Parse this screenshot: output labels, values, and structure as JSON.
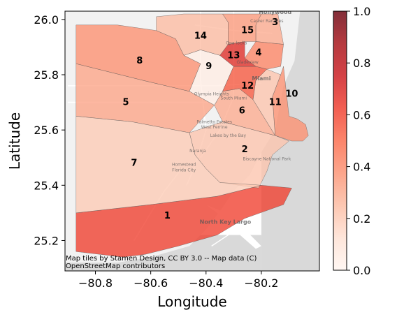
{
  "chart_data": {
    "type": "choropleth",
    "xlabel": "Longitude",
    "ylabel": "Latitude",
    "xlim": [
      -80.91,
      -79.99
    ],
    "ylim": [
      25.09,
      26.03
    ],
    "xticks": [
      {
        "value": -80.8,
        "label": "−80.8"
      },
      {
        "value": -80.6,
        "label": "−80.6"
      },
      {
        "value": -80.4,
        "label": "−80.4"
      },
      {
        "value": -80.2,
        "label": "−80.2"
      }
    ],
    "yticks": [
      {
        "value": 26.0,
        "label": "26.0"
      },
      {
        "value": 25.8,
        "label": "25.8"
      },
      {
        "value": 25.6,
        "label": "25.6"
      },
      {
        "value": 25.4,
        "label": "25.4"
      },
      {
        "value": 25.2,
        "label": "25.2"
      }
    ],
    "colormap": {
      "name": "Reds",
      "range": [
        0.0,
        1.0
      ],
      "ticks": [
        {
          "value": 0.0,
          "label": "0.0"
        },
        {
          "value": 0.2,
          "label": "0.2"
        },
        {
          "value": 0.4,
          "label": "0.4"
        },
        {
          "value": 0.6,
          "label": "0.6"
        },
        {
          "value": 0.8,
          "label": "0.8"
        },
        {
          "value": 1.0,
          "label": "1.0"
        }
      ],
      "stops": [
        [
          0.0,
          "#fff5f0"
        ],
        [
          0.125,
          "#fee0d2"
        ],
        [
          0.25,
          "#fcbba1"
        ],
        [
          0.375,
          "#fc9272"
        ],
        [
          0.5,
          "#fb6a4a"
        ],
        [
          0.625,
          "#ef3b2c"
        ],
        [
          0.75,
          "#cb181d"
        ],
        [
          0.875,
          "#a50f15"
        ],
        [
          1.0,
          "#67000d"
        ]
      ]
    },
    "regions": [
      {
        "id": "1",
        "value": 0.62,
        "label_at": [
          -80.54,
          25.29
        ],
        "polygon": [
          [
            -80.87,
            25.3
          ],
          [
            -80.6,
            25.33
          ],
          [
            -80.36,
            25.36
          ],
          [
            -80.2,
            25.4
          ],
          [
            -80.09,
            25.39
          ],
          [
            -80.12,
            25.33
          ],
          [
            -80.26,
            25.28
          ],
          [
            -80.36,
            25.22
          ],
          [
            -80.5,
            25.18
          ],
          [
            -80.62,
            25.15
          ],
          [
            -80.7,
            25.14
          ],
          [
            -80.87,
            25.16
          ]
        ]
      },
      {
        "id": "2",
        "value": 0.22,
        "label_at": [
          -80.26,
          25.53
        ],
        "polygon": [
          [
            -80.46,
            25.59
          ],
          [
            -80.34,
            25.63
          ],
          [
            -80.15,
            25.58
          ],
          [
            -80.1,
            25.56
          ],
          [
            -80.16,
            25.51
          ],
          [
            -80.18,
            25.45
          ],
          [
            -80.2,
            25.41
          ],
          [
            -80.21,
            25.39
          ],
          [
            -80.35,
            25.41
          ],
          [
            -80.4,
            25.46
          ],
          [
            -80.44,
            25.51
          ]
        ]
      },
      {
        "id": "3",
        "value": 0.3,
        "label_at": [
          -80.15,
          25.99
        ],
        "polygon": [
          [
            -80.2,
            26.02
          ],
          [
            -80.14,
            26.02
          ],
          [
            -80.12,
            25.91
          ],
          [
            -80.22,
            25.92
          ],
          [
            -80.22,
            25.98
          ]
        ]
      },
      {
        "id": "4",
        "value": 0.42,
        "label_at": [
          -80.21,
          25.88
        ],
        "polygon": [
          [
            -80.22,
            25.92
          ],
          [
            -80.12,
            25.91
          ],
          [
            -80.13,
            25.83
          ],
          [
            -80.18,
            25.82
          ],
          [
            -80.22,
            25.83
          ],
          [
            -80.26,
            25.86
          ]
        ]
      },
      {
        "id": "5",
        "value": 0.32,
        "label_at": [
          -80.69,
          25.7
        ],
        "polygon": [
          [
            -80.87,
            25.84
          ],
          [
            -80.63,
            25.78
          ],
          [
            -80.46,
            25.74
          ],
          [
            -80.37,
            25.69
          ],
          [
            -80.46,
            25.59
          ],
          [
            -80.67,
            25.63
          ],
          [
            -80.87,
            25.65
          ]
        ]
      },
      {
        "id": "6",
        "value": 0.3,
        "label_at": [
          -80.27,
          25.67
        ],
        "polygon": [
          [
            -80.37,
            25.69
          ],
          [
            -80.34,
            25.74
          ],
          [
            -80.28,
            25.75
          ],
          [
            -80.23,
            25.71
          ],
          [
            -80.15,
            25.58
          ],
          [
            -80.34,
            25.63
          ]
        ]
      },
      {
        "id": "7",
        "value": 0.2,
        "label_at": [
          -80.66,
          25.48
        ],
        "polygon": [
          [
            -80.87,
            25.65
          ],
          [
            -80.67,
            25.63
          ],
          [
            -80.46,
            25.59
          ],
          [
            -80.44,
            25.51
          ],
          [
            -80.4,
            25.46
          ],
          [
            -80.35,
            25.41
          ],
          [
            -80.2,
            25.4
          ],
          [
            -80.36,
            25.36
          ],
          [
            -80.6,
            25.33
          ],
          [
            -80.87,
            25.3
          ]
        ]
      },
      {
        "id": "8",
        "value": 0.38,
        "label_at": [
          -80.64,
          25.85
        ],
        "polygon": [
          [
            -80.87,
            25.98
          ],
          [
            -80.72,
            25.98
          ],
          [
            -80.58,
            25.96
          ],
          [
            -80.51,
            25.93
          ],
          [
            -80.48,
            25.87
          ],
          [
            -80.42,
            25.84
          ],
          [
            -80.46,
            25.74
          ],
          [
            -80.63,
            25.78
          ],
          [
            -80.87,
            25.84
          ]
        ]
      },
      {
        "id": "9",
        "value": 0.05,
        "label_at": [
          -80.39,
          25.83
        ],
        "polygon": [
          [
            -80.48,
            25.87
          ],
          [
            -80.42,
            25.89
          ],
          [
            -80.35,
            25.87
          ],
          [
            -80.3,
            25.83
          ],
          [
            -80.34,
            25.74
          ],
          [
            -80.37,
            25.69
          ],
          [
            -80.46,
            25.74
          ],
          [
            -80.42,
            25.84
          ]
        ]
      },
      {
        "id": "10",
        "value": 0.38,
        "label_at": [
          -80.09,
          25.73
        ],
        "polygon": [
          [
            -80.12,
            25.83
          ],
          [
            -80.11,
            25.74
          ],
          [
            -80.1,
            25.65
          ],
          [
            -80.07,
            25.64
          ],
          [
            -80.04,
            25.62
          ],
          [
            -80.03,
            25.58
          ],
          [
            -80.05,
            25.56
          ],
          [
            -80.09,
            25.56
          ],
          [
            -80.15,
            25.58
          ],
          [
            -80.16,
            25.72
          ],
          [
            -80.13,
            25.8
          ]
        ]
      },
      {
        "id": "11",
        "value": 0.22,
        "label_at": [
          -80.15,
          25.7
        ],
        "polygon": [
          [
            -80.18,
            25.82
          ],
          [
            -80.13,
            25.8
          ],
          [
            -80.16,
            25.72
          ],
          [
            -80.15,
            25.58
          ],
          [
            -80.23,
            25.71
          ],
          [
            -80.22,
            25.78
          ]
        ]
      },
      {
        "id": "12",
        "value": 0.55,
        "label_at": [
          -80.25,
          25.76
        ],
        "polygon": [
          [
            -80.3,
            25.83
          ],
          [
            -80.22,
            25.83
          ],
          [
            -80.18,
            25.82
          ],
          [
            -80.22,
            25.78
          ],
          [
            -80.23,
            25.71
          ],
          [
            -80.28,
            25.75
          ],
          [
            -80.34,
            25.74
          ]
        ]
      },
      {
        "id": "13",
        "value": 0.68,
        "label_at": [
          -80.3,
          25.87
        ],
        "polygon": [
          [
            -80.35,
            25.87
          ],
          [
            -80.32,
            25.91
          ],
          [
            -80.26,
            25.92
          ],
          [
            -80.26,
            25.86
          ],
          [
            -80.22,
            25.83
          ],
          [
            -80.3,
            25.83
          ]
        ]
      },
      {
        "id": "14",
        "value": 0.25,
        "label_at": [
          -80.42,
          25.94
        ],
        "polygon": [
          [
            -80.58,
            25.96
          ],
          [
            -80.51,
            25.93
          ],
          [
            -80.48,
            25.87
          ],
          [
            -80.42,
            25.89
          ],
          [
            -80.35,
            25.87
          ],
          [
            -80.32,
            25.91
          ],
          [
            -80.32,
            25.99
          ],
          [
            -80.34,
            26.02
          ],
          [
            -80.48,
            26.02
          ],
          [
            -80.58,
            26.01
          ]
        ]
      },
      {
        "id": "15",
        "value": 0.35,
        "label_at": [
          -80.25,
          25.96
        ],
        "polygon": [
          [
            -80.32,
            25.91
          ],
          [
            -80.26,
            25.92
          ],
          [
            -80.22,
            25.92
          ],
          [
            -80.22,
            25.98
          ],
          [
            -80.2,
            26.02
          ],
          [
            -80.34,
            26.02
          ],
          [
            -80.32,
            25.99
          ]
        ]
      }
    ]
  },
  "basemap": {
    "land_color": "#f2f2f2",
    "water_color": "#d9d9d9",
    "road_color": "#ffffff",
    "places": [
      {
        "name": "Hollywood",
        "lon": -80.15,
        "lat": 26.02,
        "bold": true
      },
      {
        "name": "Carver Ranches",
        "lon": -80.18,
        "lat": 25.99,
        "bold": false
      },
      {
        "name": "Opa-locka",
        "lon": -80.29,
        "lat": 25.91,
        "bold": false
      },
      {
        "name": "Gladeview",
        "lon": -80.25,
        "lat": 25.84,
        "bold": false
      },
      {
        "name": "Miami",
        "lon": -80.2,
        "lat": 25.78,
        "bold": true
      },
      {
        "name": "Olympia Heights",
        "lon": -80.38,
        "lat": 25.725,
        "bold": false
      },
      {
        "name": "South Miami",
        "lon": -80.3,
        "lat": 25.71,
        "bold": false
      },
      {
        "name": "Palmetto Estates",
        "lon": -80.37,
        "lat": 25.625,
        "bold": false
      },
      {
        "name": "West Perrine",
        "lon": -80.37,
        "lat": 25.605,
        "bold": false
      },
      {
        "name": "Lakes by the Bay",
        "lon": -80.32,
        "lat": 25.575,
        "bold": false
      },
      {
        "name": "Biscayne National Park",
        "lon": -80.18,
        "lat": 25.49,
        "bold": false
      },
      {
        "name": "Naranja",
        "lon": -80.43,
        "lat": 25.52,
        "bold": false
      },
      {
        "name": "Homestead",
        "lon": -80.48,
        "lat": 25.47,
        "bold": false
      },
      {
        "name": "Florida City",
        "lon": -80.48,
        "lat": 25.45,
        "bold": false
      },
      {
        "name": "North Key Largo",
        "lon": -80.33,
        "lat": 25.26,
        "bold": true
      }
    ]
  },
  "attribution": {
    "line1": "Map tiles by Stamen Design, CC BY 3.0 -- Map data (C)",
    "line2": "OpenStreetMap contributors"
  }
}
